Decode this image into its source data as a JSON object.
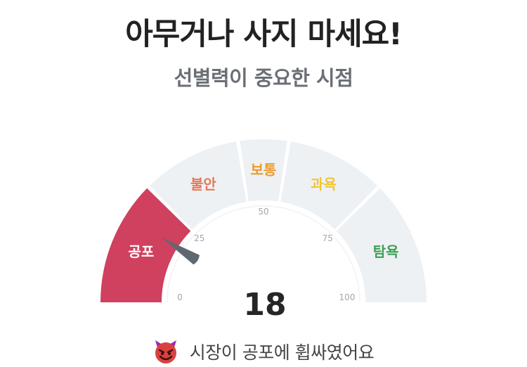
{
  "header": {
    "title": "아무거나 사지 마세요!",
    "subtitle": "선별력이 중요한 시점"
  },
  "gauge": {
    "value": 18,
    "min": 0,
    "max": 100,
    "ticks": [
      "0",
      "25",
      "50",
      "75",
      "100"
    ],
    "segments": [
      {
        "label": "공포",
        "from": 0,
        "to": 25,
        "active": true,
        "label_color": "#ffffff",
        "fill": "#d0405f"
      },
      {
        "label": "불안",
        "from": 25,
        "to": 45,
        "active": false,
        "label_color": "#e9785a",
        "fill": "#eef1f4"
      },
      {
        "label": "보통",
        "from": 45,
        "to": 55,
        "active": false,
        "label_color": "#ef9a2c",
        "fill": "#eef1f4"
      },
      {
        "label": "과욕",
        "from": 55,
        "to": 75,
        "active": false,
        "label_color": "#f1c534",
        "fill": "#eef1f4"
      },
      {
        "label": "탐욕",
        "from": 75,
        "to": 100,
        "active": false,
        "label_color": "#3f9f55",
        "fill": "#eef1f4"
      }
    ],
    "needle_color": "#5f6871"
  },
  "status": {
    "icon": "devil-face-icon",
    "message": "시장이 공포에 휩싸였어요"
  }
}
